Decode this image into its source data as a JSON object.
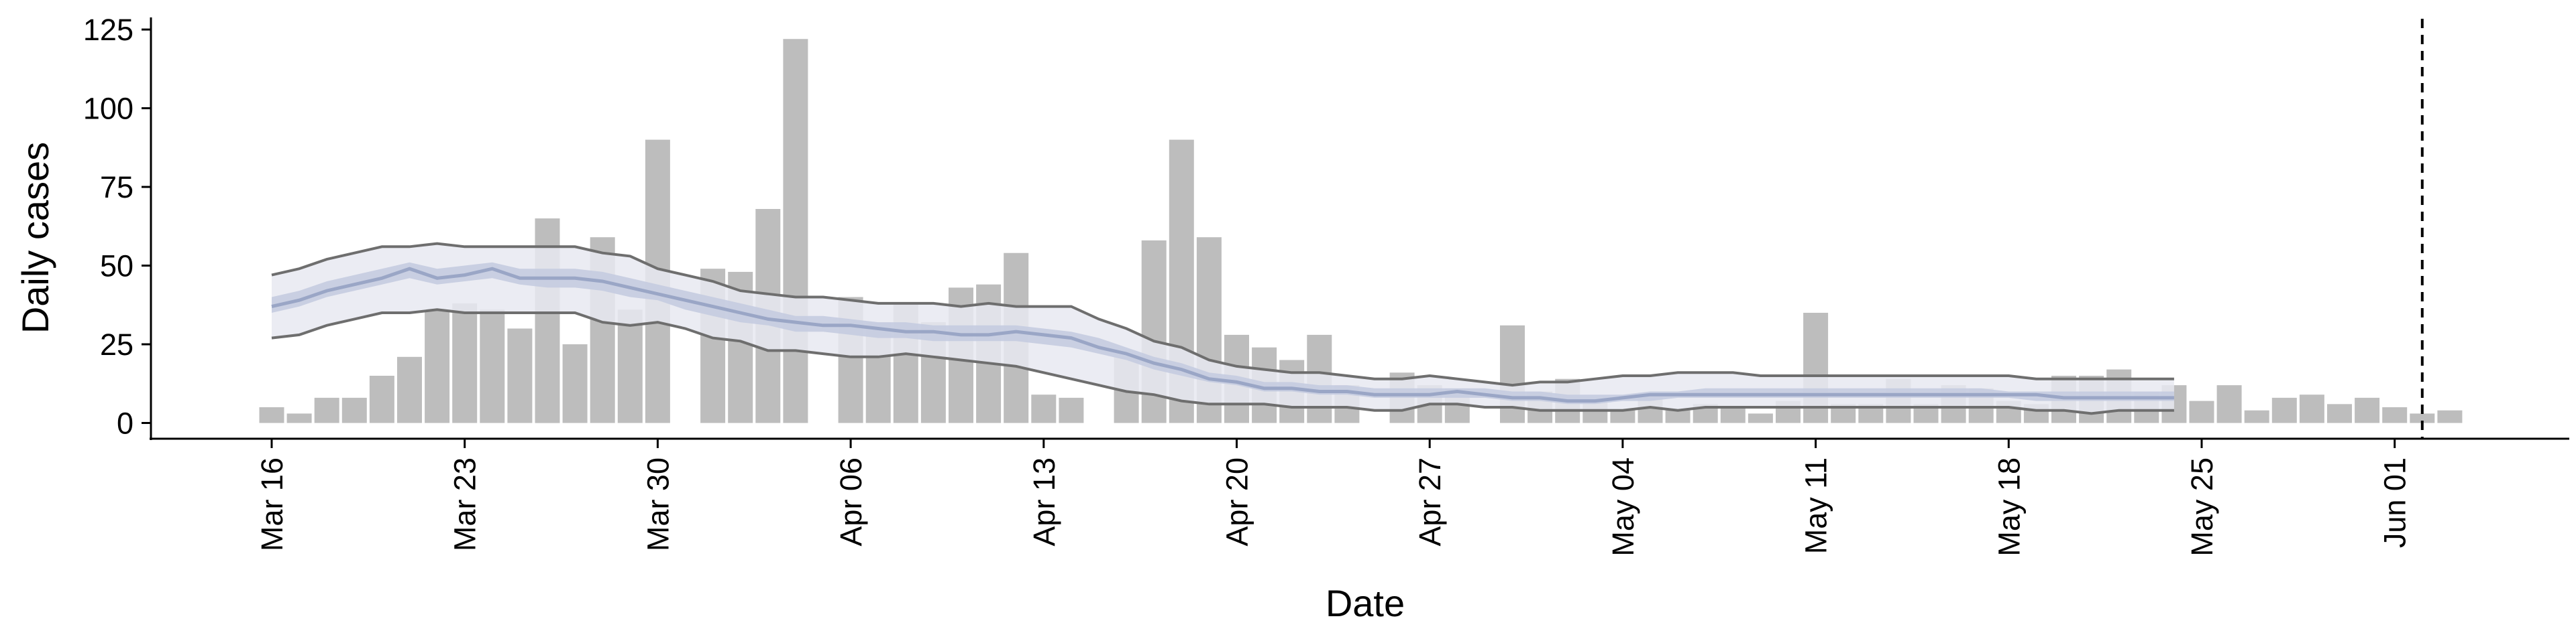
{
  "chart_data": {
    "type": "bar",
    "xlabel": "Date",
    "ylabel": "Daily cases",
    "ylim": [
      -5,
      128
    ],
    "x_ticks": [
      "Mar 16",
      "Mar 23",
      "Mar 30",
      "Apr 06",
      "Apr 13",
      "Apr 20",
      "Apr 27",
      "May 04",
      "May 11",
      "May 18",
      "May 25",
      "Jun 01"
    ],
    "y_ticks": [
      "0",
      "25",
      "50",
      "75",
      "100",
      "125"
    ],
    "dates": [
      "2020-03-16",
      "2020-03-17",
      "2020-03-18",
      "2020-03-19",
      "2020-03-20",
      "2020-03-21",
      "2020-03-22",
      "2020-03-23",
      "2020-03-24",
      "2020-03-25",
      "2020-03-26",
      "2020-03-27",
      "2020-03-28",
      "2020-03-29",
      "2020-03-30",
      "2020-03-31",
      "2020-04-01",
      "2020-04-02",
      "2020-04-03",
      "2020-04-04",
      "2020-04-05",
      "2020-04-06",
      "2020-04-07",
      "2020-04-08",
      "2020-04-09",
      "2020-04-10",
      "2020-04-11",
      "2020-04-12",
      "2020-04-13",
      "2020-04-14",
      "2020-04-15",
      "2020-04-16",
      "2020-04-17",
      "2020-04-18",
      "2020-04-19",
      "2020-04-20",
      "2020-04-21",
      "2020-04-22",
      "2020-04-23",
      "2020-04-24",
      "2020-04-25",
      "2020-04-26",
      "2020-04-27",
      "2020-04-28",
      "2020-04-29",
      "2020-04-30",
      "2020-05-01",
      "2020-05-02",
      "2020-05-03",
      "2020-05-04",
      "2020-05-05",
      "2020-05-06",
      "2020-05-07",
      "2020-05-08",
      "2020-05-09",
      "2020-05-10",
      "2020-05-11",
      "2020-05-12",
      "2020-05-13",
      "2020-05-14",
      "2020-05-15",
      "2020-05-16",
      "2020-05-17",
      "2020-05-18",
      "2020-05-19",
      "2020-05-20",
      "2020-05-21",
      "2020-05-22",
      "2020-05-23",
      "2020-05-24",
      "2020-05-25",
      "2020-05-26",
      "2020-05-27",
      "2020-05-28",
      "2020-05-29",
      "2020-05-30",
      "2020-05-31",
      "2020-06-01",
      "2020-06-02",
      "2020-06-03"
    ],
    "series": [
      {
        "type": "bar",
        "values": [
          5,
          3,
          8,
          8,
          15,
          21,
          36,
          38,
          36,
          30,
          65,
          25,
          59,
          36,
          90,
          0,
          49,
          48,
          68,
          122,
          0,
          40,
          32,
          38,
          32,
          43,
          44,
          54,
          9,
          8,
          0,
          21,
          58,
          90,
          59,
          28,
          24,
          20,
          28,
          12,
          0,
          16,
          12,
          11,
          0,
          31,
          10,
          14,
          7,
          4,
          9,
          4,
          6,
          5,
          3,
          7,
          35,
          6,
          6,
          14,
          6,
          12,
          11,
          7,
          6,
          15,
          15,
          17,
          10,
          12,
          7,
          12,
          4,
          8,
          9,
          6,
          8,
          5,
          3,
          4
        ],
        "color": "#bdbdbd"
      },
      {
        "type": "line",
        "x": [
          "2020-03-16",
          "2020-03-17",
          "2020-03-18",
          "2020-03-19",
          "2020-03-20",
          "2020-03-21",
          "2020-03-22",
          "2020-03-23",
          "2020-03-24",
          "2020-03-25",
          "2020-03-26",
          "2020-03-27",
          "2020-03-28",
          "2020-03-29",
          "2020-03-30",
          "2020-03-31",
          "2020-04-01",
          "2020-04-02",
          "2020-04-03",
          "2020-04-04",
          "2020-04-05",
          "2020-04-06",
          "2020-04-07",
          "2020-04-08",
          "2020-04-09",
          "2020-04-10",
          "2020-04-11",
          "2020-04-12",
          "2020-04-13",
          "2020-04-14",
          "2020-04-15",
          "2020-04-16",
          "2020-04-17",
          "2020-04-18",
          "2020-04-19",
          "2020-04-20",
          "2020-04-21",
          "2020-04-22",
          "2020-04-23",
          "2020-04-24",
          "2020-04-25",
          "2020-04-26",
          "2020-04-27",
          "2020-04-28",
          "2020-04-29",
          "2020-04-30",
          "2020-05-01",
          "2020-05-02",
          "2020-05-03",
          "2020-05-04",
          "2020-05-05",
          "2020-05-06",
          "2020-05-07",
          "2020-05-08",
          "2020-05-09",
          "2020-05-10",
          "2020-05-11",
          "2020-05-12",
          "2020-05-13",
          "2020-05-14",
          "2020-05-15",
          "2020-05-16",
          "2020-05-17",
          "2020-05-18",
          "2020-05-19",
          "2020-05-20",
          "2020-05-21",
          "2020-05-22",
          "2020-05-23",
          "2020-05-24"
        ],
        "values": [
          37,
          39,
          42,
          44,
          46,
          49,
          46,
          47,
          49,
          46,
          46,
          46,
          45,
          43,
          41,
          39,
          37,
          35,
          33,
          32,
          31,
          31,
          30,
          29,
          29,
          28,
          28,
          29,
          28,
          27,
          24,
          22,
          19,
          17,
          14,
          13,
          11,
          11,
          10,
          10,
          9,
          9,
          9,
          10,
          9,
          8,
          8,
          7,
          7,
          8,
          9,
          9,
          9,
          9,
          9,
          9,
          9,
          9,
          9,
          9,
          9,
          9,
          9,
          9,
          9,
          8,
          8,
          8,
          8,
          8
        ],
        "color": "#9aa6c6",
        "band_50": {
          "lower": [
            35,
            37,
            40,
            42,
            44,
            46,
            44,
            45,
            46,
            44,
            43,
            43,
            42,
            40,
            39,
            36,
            34,
            32,
            31,
            29,
            29,
            28,
            27,
            27,
            26,
            26,
            26,
            26,
            25,
            24,
            22,
            20,
            17,
            15,
            13,
            12,
            10,
            10,
            9,
            9,
            8,
            8,
            8,
            8,
            8,
            7,
            7,
            6,
            6,
            7,
            7,
            8,
            8,
            8,
            8,
            8,
            8,
            8,
            8,
            8,
            8,
            8,
            8,
            8,
            7,
            7,
            7,
            7,
            7,
            7
          ],
          "upper": [
            40,
            42,
            45,
            47,
            49,
            51,
            49,
            50,
            51,
            49,
            49,
            49,
            48,
            46,
            44,
            42,
            40,
            38,
            36,
            34,
            34,
            33,
            32,
            32,
            31,
            31,
            31,
            31,
            30,
            29,
            27,
            24,
            21,
            19,
            16,
            15,
            13,
            13,
            12,
            12,
            11,
            11,
            11,
            11,
            11,
            10,
            10,
            9,
            9,
            9,
            10,
            10,
            11,
            11,
            11,
            11,
            11,
            11,
            11,
            11,
            11,
            11,
            11,
            10,
            10,
            10,
            10,
            10,
            10,
            10
          ]
        },
        "band_95": {
          "lower": [
            27,
            28,
            31,
            33,
            35,
            35,
            36,
            35,
            35,
            35,
            35,
            35,
            32,
            31,
            32,
            30,
            27,
            26,
            23,
            23,
            22,
            21,
            21,
            22,
            21,
            20,
            19,
            18,
            16,
            14,
            12,
            10,
            9,
            7,
            6,
            6,
            6,
            5,
            5,
            5,
            4,
            4,
            6,
            6,
            5,
            5,
            4,
            4,
            4,
            4,
            5,
            4,
            5,
            5,
            5,
            5,
            5,
            5,
            5,
            5,
            5,
            5,
            5,
            5,
            4,
            4,
            3,
            4,
            4,
            4
          ],
          "upper": [
            47,
            49,
            52,
            54,
            56,
            56,
            57,
            56,
            56,
            56,
            56,
            56,
            54,
            53,
            49,
            47,
            45,
            42,
            41,
            40,
            40,
            39,
            38,
            38,
            38,
            37,
            38,
            37,
            37,
            37,
            33,
            30,
            26,
            24,
            20,
            18,
            17,
            16,
            16,
            15,
            14,
            14,
            15,
            14,
            13,
            12,
            13,
            13,
            14,
            15,
            15,
            16,
            16,
            16,
            15,
            15,
            15,
            15,
            15,
            15,
            15,
            15,
            15,
            15,
            14,
            14,
            14,
            14,
            14,
            14
          ]
        }
      }
    ],
    "vline": "2020-06-02",
    "grid": false,
    "colors": {
      "bar": "#bdbdbd",
      "band_95": "#e7e9f1",
      "band_50": "#c5cce0",
      "median": "#9aa6c6",
      "bound_line": "#6e6e6e",
      "axis": "#000000"
    }
  }
}
